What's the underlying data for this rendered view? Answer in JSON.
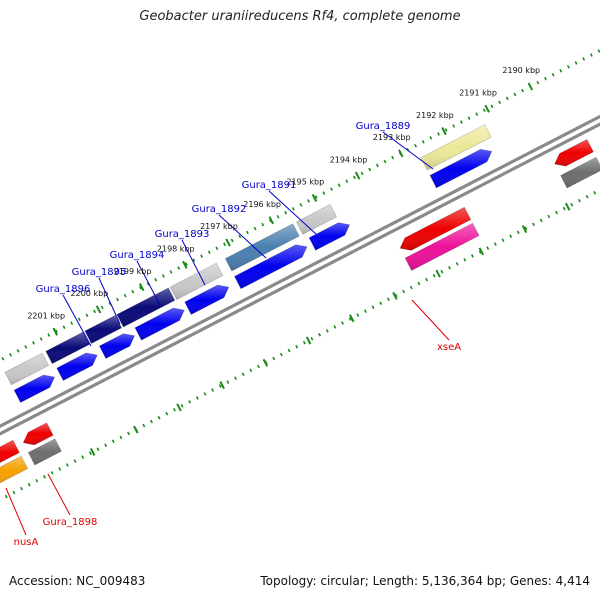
{
  "title": "Geobacter uraniireducens Rf4, complete genome",
  "footer": {
    "accession": "Accession: NC_009483",
    "summary": "Topology: circular; Length: 5,136,364 bp; Genes: 4,414"
  },
  "colors": {
    "background": "#ffffff",
    "backbone": "#8a8a8a",
    "tick_green": "#1a8a1a",
    "label_blue": "#0000cc",
    "label_red": "#dd0000",
    "navy": "#0a0a78",
    "blue": "#0000ee",
    "light_grey": "#c8c8c8",
    "dark_grey": "#6e6e6e",
    "steel_blue": "#4a80b0",
    "khaki": "#ece898",
    "red": "#ee0000",
    "pink": "#ee1199",
    "salmon": "#f47a7a",
    "orange": "#f5a000"
  },
  "scale": {
    "upper_ticks": [
      "2190 kbp",
      "2191 kbp",
      "2192 kbp",
      "2193 kbp",
      "2194 kbp",
      "2195 kbp",
      "2196 kbp",
      "2197 kbp",
      "2198 kbp",
      "2199 kbp",
      "2200 kbp",
      "2201 kbp"
    ]
  },
  "gene_labels": [
    {
      "name": "Gura_1889",
      "color": "#0000cc"
    },
    {
      "name": "Gura_1891",
      "color": "#0000cc"
    },
    {
      "name": "Gura_1892",
      "color": "#0000cc"
    },
    {
      "name": "Gura_1893",
      "color": "#0000cc"
    },
    {
      "name": "Gura_1894",
      "color": "#0000cc"
    },
    {
      "name": "Gura_1895",
      "color": "#0000cc"
    },
    {
      "name": "Gura_1896",
      "color": "#0000cc"
    },
    {
      "name": "xseA",
      "color": "#dd0000"
    },
    {
      "name": "Gura_1898",
      "color": "#dd0000"
    },
    {
      "name": "nusA",
      "color": "#dd0000"
    }
  ]
}
